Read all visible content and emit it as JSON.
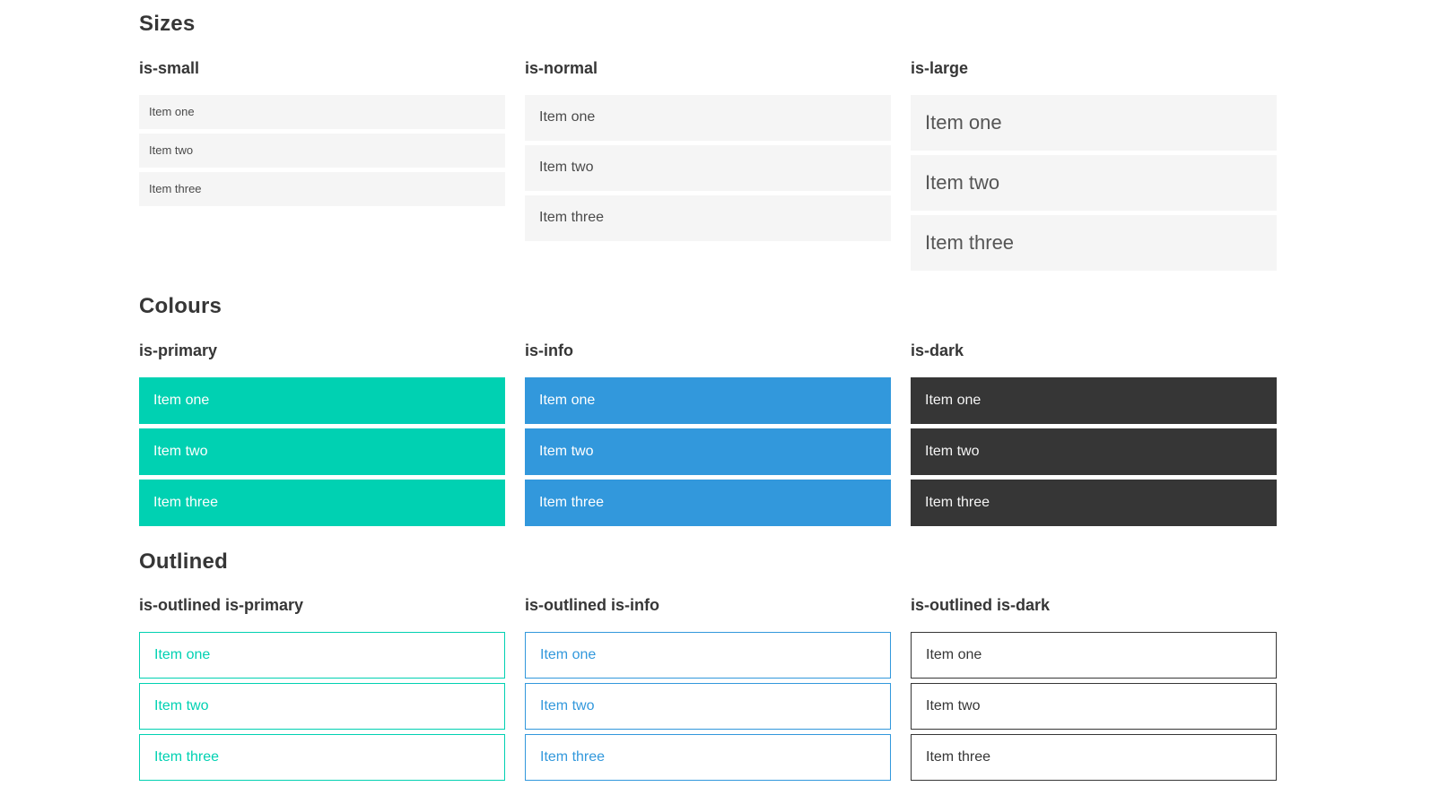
{
  "colors": {
    "primary": "#00d1b2",
    "info": "#3298dc",
    "dark": "#363636",
    "item_background_light": "#f5f5f5",
    "heading_text": "#363636",
    "item_text": "#4a4a4a",
    "item_text_on_color": "#ffffff"
  },
  "sections": [
    {
      "title": "Sizes",
      "groups": [
        {
          "variant": "is-small",
          "items": [
            "Item one",
            "Item two",
            "Item three"
          ]
        },
        {
          "variant": "is-normal",
          "items": [
            "Item one",
            "Item two",
            "Item three"
          ]
        },
        {
          "variant": "is-large",
          "items": [
            "Item one",
            "Item two",
            "Item three"
          ]
        }
      ]
    },
    {
      "title": "Colours",
      "groups": [
        {
          "variant": "is-primary",
          "items": [
            "Item one",
            "Item two",
            "Item three"
          ]
        },
        {
          "variant": "is-info",
          "items": [
            "Item one",
            "Item two",
            "Item three"
          ]
        },
        {
          "variant": "is-dark",
          "items": [
            "Item one",
            "Item two",
            "Item three"
          ]
        }
      ]
    },
    {
      "title": "Outlined",
      "groups": [
        {
          "variant": "is-outlined is-primary",
          "items": [
            "Item one",
            "Item two",
            "Item three"
          ]
        },
        {
          "variant": "is-outlined is-info",
          "items": [
            "Item one",
            "Item two",
            "Item three"
          ]
        },
        {
          "variant": "is-outlined is-dark",
          "items": [
            "Item one",
            "Item two",
            "Item three"
          ]
        }
      ]
    }
  ]
}
